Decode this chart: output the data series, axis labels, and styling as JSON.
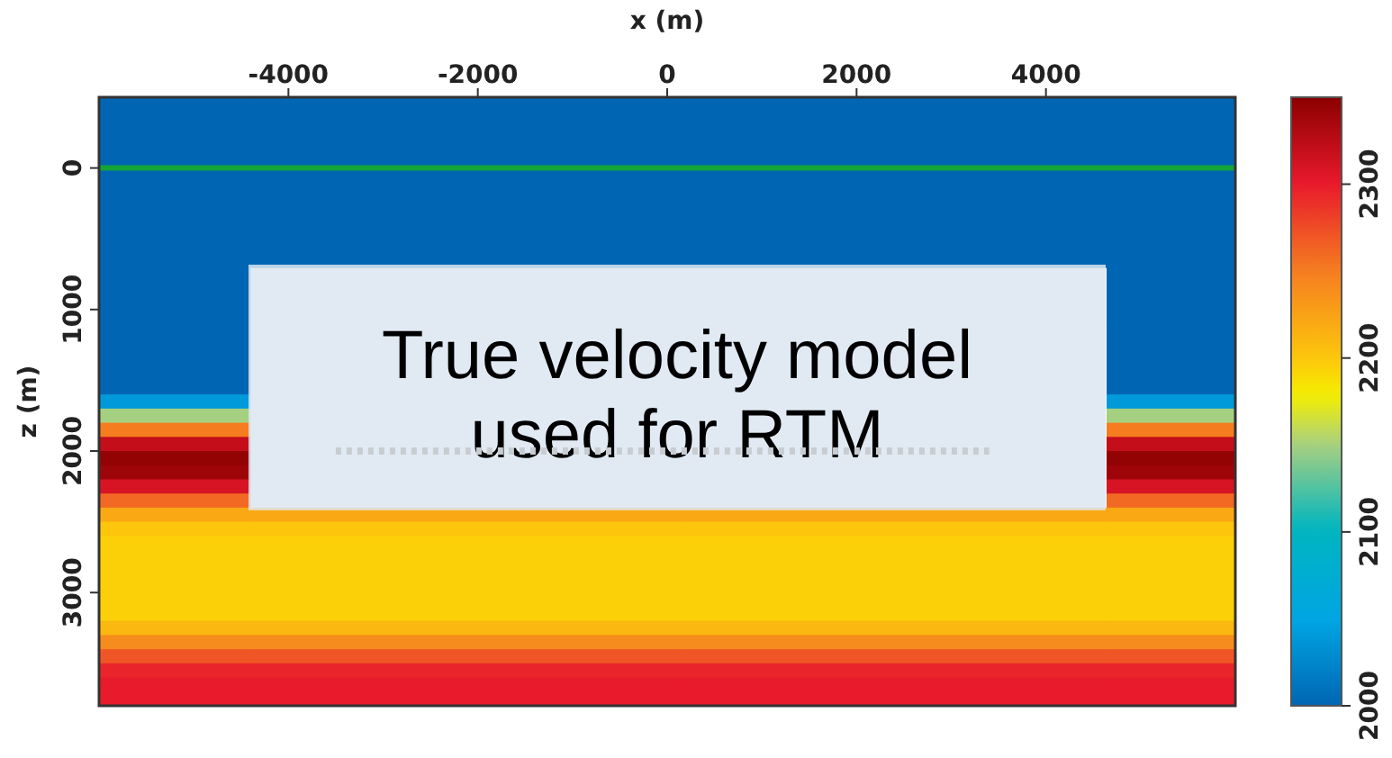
{
  "chart_data": {
    "type": "heatmap",
    "xlabel": "x (m)",
    "ylabel": "z (m)",
    "xlim": [
      -6000,
      6000
    ],
    "xticks": [
      -4000,
      -2000,
      0,
      2000,
      4000
    ],
    "ylim": [
      3800,
      -500
    ],
    "yticks": [
      0,
      1000,
      2000,
      3000
    ],
    "x": [
      -5200,
      -3620,
      3960,
      5320
    ],
    "y": [
      -450,
      -350,
      -250,
      -150,
      -50,
      50,
      150,
      250,
      350,
      450,
      550,
      650,
      750,
      850,
      950,
      1050,
      1150,
      1250,
      1350,
      1450,
      1550,
      1650,
      1750,
      1850,
      1950,
      2050,
      2150,
      2250,
      2350,
      2450,
      2550,
      2650,
      2750,
      2850,
      2950,
      3050,
      3150,
      3250,
      3350,
      3450,
      3550,
      3650,
      3750
    ],
    "cells": [
      [
        2000,
        2000,
        2000,
        2000
      ],
      [
        2000,
        2000,
        2000,
        2000
      ],
      [
        2000,
        2000,
        2000,
        2000
      ],
      [
        2000,
        2000,
        2000,
        2000
      ],
      [
        2000,
        2000,
        2000,
        2000
      ],
      [
        2000,
        2000,
        2000,
        2000
      ],
      [
        2000,
        2000,
        2000,
        2000
      ],
      [
        2000,
        2000,
        2000,
        2000
      ],
      [
        2000,
        2000,
        2000,
        2000
      ],
      [
        2000,
        2000,
        2000,
        2000
      ],
      [
        2000,
        2000,
        2000,
        2000
      ],
      [
        2000,
        2000,
        2000,
        2000
      ],
      [
        2000,
        null,
        null,
        2000
      ],
      [
        2000,
        null,
        null,
        2000
      ],
      [
        2000,
        null,
        null,
        2000
      ],
      [
        2000,
        null,
        null,
        2000
      ],
      [
        2000,
        null,
        null,
        2000
      ],
      [
        2000,
        null,
        null,
        2000
      ],
      [
        2000,
        null,
        null,
        2000
      ],
      [
        2000,
        null,
        null,
        2000
      ],
      [
        2000,
        null,
        null,
        2000
      ],
      [
        2040,
        null,
        null,
        2040
      ],
      [
        2150,
        null,
        null,
        2150
      ],
      [
        2250,
        null,
        null,
        2250
      ],
      [
        2320,
        null,
        null,
        2320
      ],
      [
        2345,
        null,
        null,
        2345
      ],
      [
        2340,
        null,
        null,
        2340
      ],
      [
        2310,
        null,
        null,
        2310
      ],
      [
        2260,
        null,
        null,
        2260
      ],
      [
        2220,
        2220,
        2220,
        2220
      ],
      [
        2200,
        2200,
        2200,
        2200
      ],
      [
        2195,
        2195,
        2195,
        2195
      ],
      [
        2195,
        2195,
        2195,
        2195
      ],
      [
        2195,
        2195,
        2195,
        2195
      ],
      [
        2195,
        2195,
        2195,
        2195
      ],
      [
        2195,
        2195,
        2195,
        2195
      ],
      [
        2195,
        2195,
        2195,
        2195
      ],
      [
        2210,
        2210,
        2210,
        2210
      ],
      [
        2240,
        2240,
        2240,
        2240
      ],
      [
        2270,
        2270,
        2270,
        2270
      ],
      [
        2295,
        2295,
        2295,
        2295
      ],
      [
        2300,
        2300,
        2300,
        2300
      ],
      [
        2300,
        2300,
        2300,
        2300
      ]
    ],
    "clim": [
      2000,
      2350
    ],
    "cticks": [
      2000,
      2100,
      2200,
      2300
    ],
    "ref_lines": [
      {
        "axis": "y",
        "value": 0,
        "color": "#13a538",
        "line_style": "solid"
      }
    ],
    "series": [
      {
        "type": "line",
        "x": [
          -3500,
          3400
        ],
        "values": [
          2000,
          2000
        ],
        "color": "#c8cdd2",
        "line_style": "dotted"
      }
    ],
    "annotations": [
      "True velocity model used for RTM"
    ]
  }
}
